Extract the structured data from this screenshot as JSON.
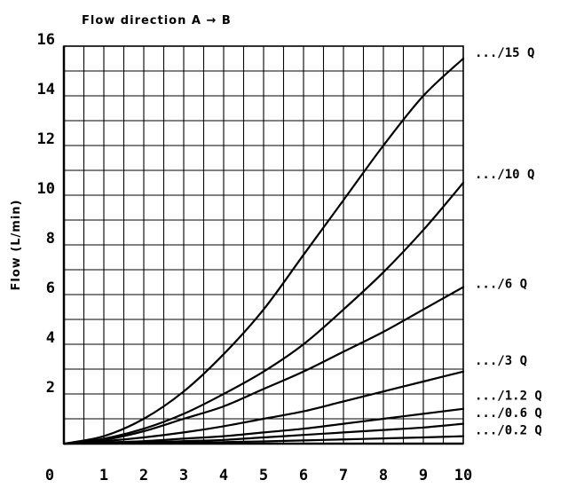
{
  "chart_data": {
    "type": "line",
    "title": "Flow direction A → B",
    "xlabel": "",
    "ylabel": "Flow (L/min)",
    "xlim": [
      0,
      10
    ],
    "ylim": [
      0,
      16
    ],
    "x_ticks": [
      "0",
      "1",
      "2",
      "3",
      "4",
      "5",
      "6",
      "7",
      "8",
      "9",
      "10"
    ],
    "y_ticks": [
      "2",
      "4",
      "6",
      "8",
      "10",
      "12",
      "14",
      "16"
    ],
    "grid": true,
    "x": [
      0,
      1,
      2,
      3,
      4,
      5,
      6,
      7,
      8,
      9,
      10
    ],
    "series": [
      {
        "name": ".../15 Q",
        "values": [
          0,
          0.3,
          1.0,
          2.1,
          3.6,
          5.4,
          7.6,
          9.8,
          12.0,
          14.0,
          15.5
        ]
      },
      {
        "name": ".../10 Q",
        "values": [
          0,
          0.2,
          0.6,
          1.2,
          2.0,
          2.9,
          4.0,
          5.4,
          6.9,
          8.6,
          10.5
        ]
      },
      {
        "name": ".../6 Q",
        "values": [
          0,
          0.15,
          0.5,
          1.0,
          1.5,
          2.2,
          2.9,
          3.7,
          4.5,
          5.4,
          6.3
        ]
      },
      {
        "name": ".../3 Q",
        "values": [
          0,
          0.1,
          0.25,
          0.45,
          0.7,
          1.0,
          1.3,
          1.7,
          2.1,
          2.5,
          2.9
        ]
      },
      {
        "name": ".../1.2 Q",
        "values": [
          0,
          0.05,
          0.1,
          0.2,
          0.3,
          0.45,
          0.6,
          0.8,
          1.0,
          1.2,
          1.4
        ]
      },
      {
        "name": ".../0.6 Q",
        "values": [
          0,
          0.02,
          0.05,
          0.1,
          0.15,
          0.25,
          0.35,
          0.45,
          0.55,
          0.65,
          0.8
        ]
      },
      {
        "name": ".../0.2 Q",
        "values": [
          0,
          0.01,
          0.02,
          0.04,
          0.06,
          0.09,
          0.13,
          0.17,
          0.21,
          0.25,
          0.3
        ]
      }
    ],
    "series_label_positions_y": [
      15.5,
      10.6,
      6.2,
      3.1,
      1.7,
      1.0,
      0.3
    ]
  },
  "colors": {
    "line": "#000000",
    "grid": "#000000",
    "background": "#ffffff"
  }
}
